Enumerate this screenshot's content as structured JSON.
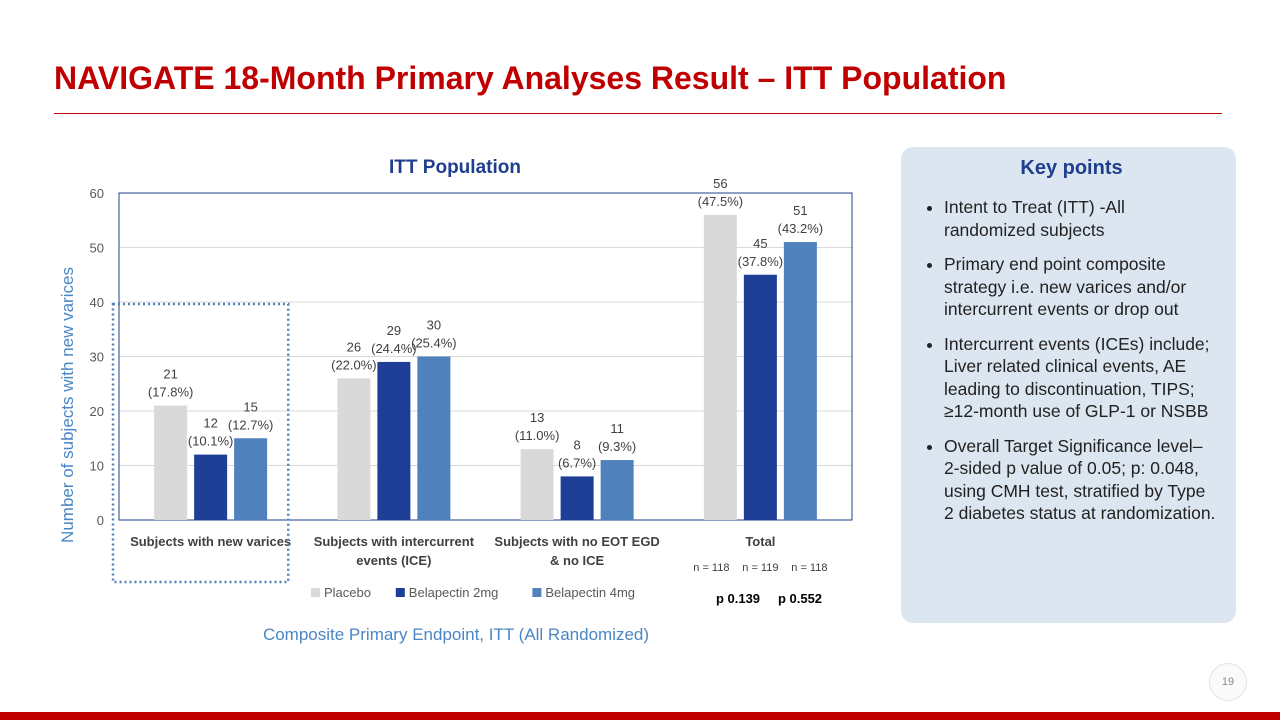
{
  "slide_title": "NAVIGATE 18-Month Primary Analyses Result – ITT Population",
  "chart_data": {
    "type": "bar",
    "title": "ITT Population",
    "ylabel": "Number of subjects with new varices",
    "xlabel": "Composite Primary Endpoint, ITT (All Randomized)",
    "ylim": [
      0,
      60
    ],
    "yticks": [
      0,
      10,
      20,
      30,
      40,
      50,
      60
    ],
    "yticks_labels": [
      "0",
      "10",
      "20",
      "30",
      "40",
      "50",
      "60"
    ],
    "grid": true,
    "legend_position": "bottom",
    "categories": [
      "Subjects with new varices",
      "Subjects with intercurrent events (ICE)",
      "Subjects with no EOT EGD & no ICE",
      "Total"
    ],
    "category_label_lines": [
      [
        "Subjects with new varices"
      ],
      [
        "Subjects with intercurrent",
        "events (ICE)"
      ],
      [
        "Subjects with no EOT EGD",
        "& no ICE"
      ],
      [
        "Total"
      ]
    ],
    "series": [
      {
        "name": "Placebo",
        "color": "#d9d9d9",
        "values": [
          21,
          26,
          13,
          56
        ],
        "pct_labels": [
          "(17.8%)",
          "(22.0%)",
          "(11.0%)",
          "(47.5%)"
        ]
      },
      {
        "name": "Belapectin 2mg",
        "color": "#1f3f97",
        "values": [
          12,
          29,
          8,
          45
        ],
        "pct_labels": [
          "(10.1%)",
          "(24.4%)",
          "(6.7%)",
          "(37.8%)"
        ]
      },
      {
        "name": "Belapectin 4mg",
        "color": "#4f81bd",
        "values": [
          15,
          30,
          11,
          51
        ],
        "pct_labels": [
          "(12.7%)",
          "(25.4%)",
          "(9.3%)",
          "(43.2%)"
        ]
      }
    ],
    "n_labels": [
      "n = 118",
      "n = 119",
      "n = 118"
    ],
    "p_values": [
      "p 0.139",
      "p 0.552"
    ],
    "highlighted_category": "Subjects with new varices"
  },
  "key_points": {
    "title": "Key points",
    "items": [
      "Intent to Treat (ITT) -All randomized subjects",
      "Primary end point composite strategy i.e. new varices and/or intercurrent events or drop out",
      "Intercurrent events (ICEs) include; Liver related clinical events, AE leading to discontinuation, TIPS;  ≥12-month use of GLP-1 or NSBB",
      "Overall Target Significance level– 2-sided p value of 0.05; p: 0.048, using CMH test, stratified by Type 2 diabetes status at randomization."
    ]
  },
  "page_number": "19",
  "colors": {
    "accent": "#c00000",
    "chart_title": "#1f3f8c",
    "axis_label": "#4a86c5",
    "keybox_bg": "#dce6f0"
  }
}
